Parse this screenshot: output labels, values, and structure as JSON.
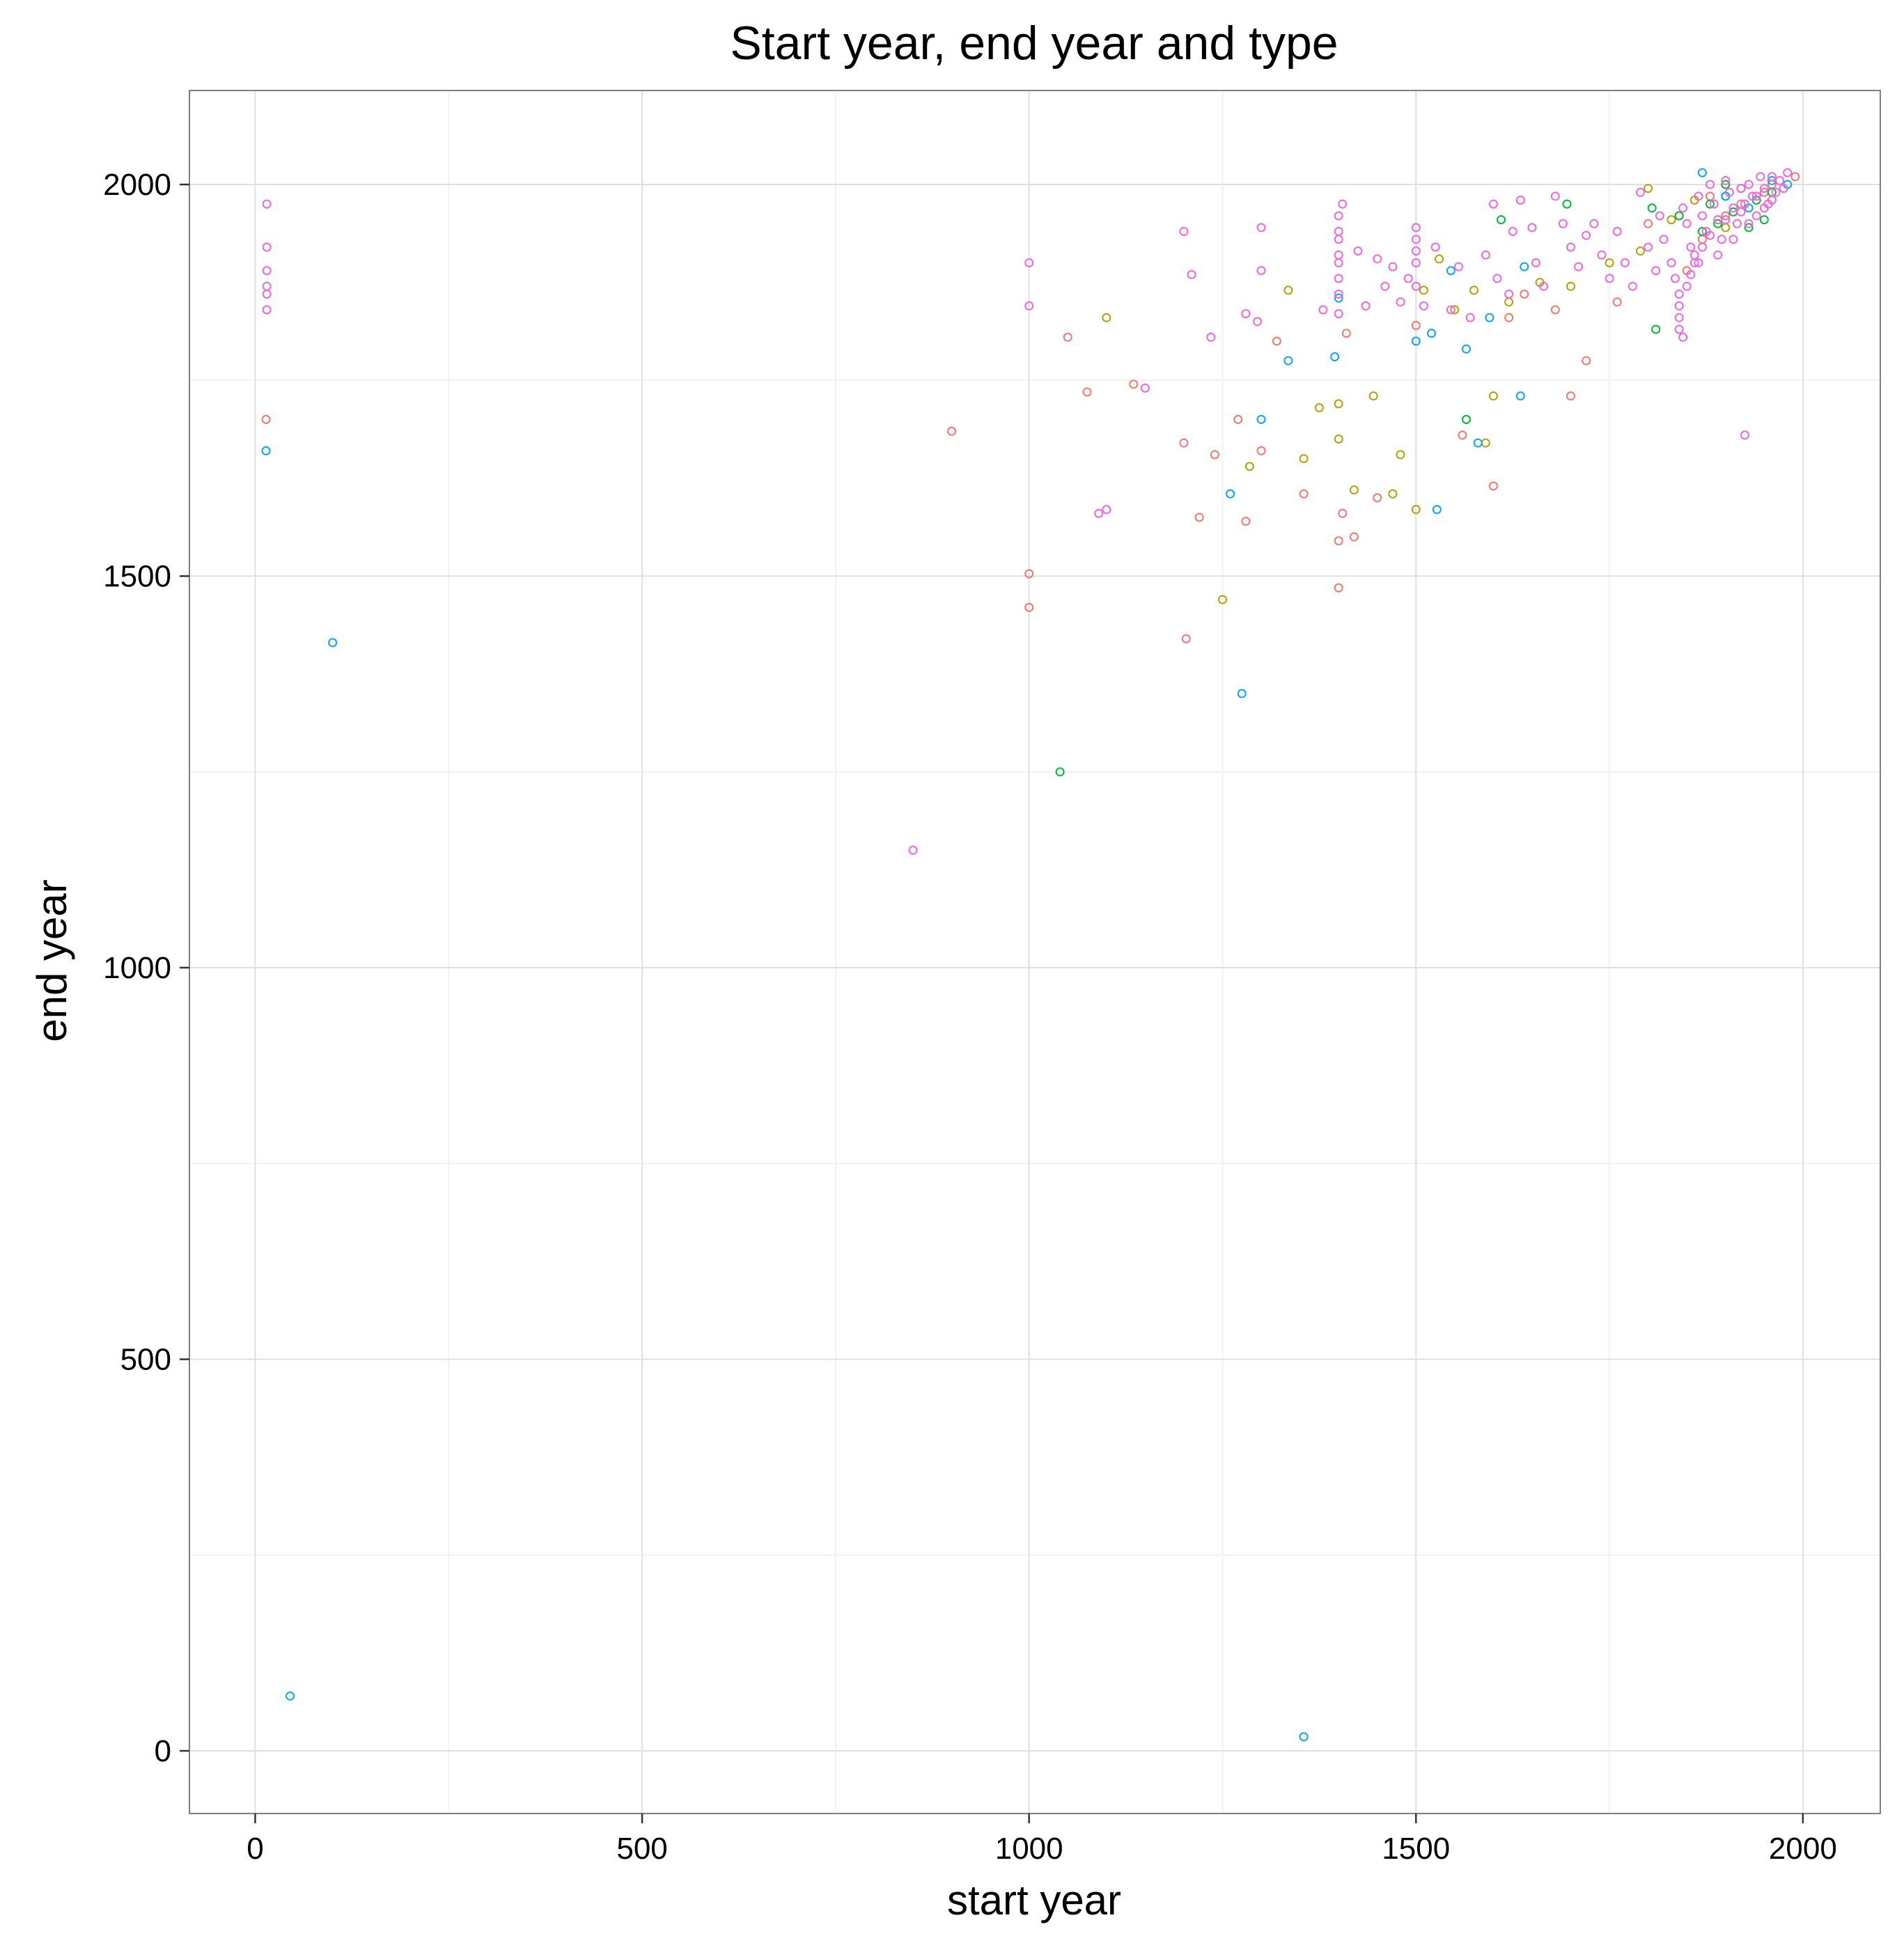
{
  "chart_data": {
    "type": "scatter",
    "title": "Start year, end year and type",
    "xlabel": "start year",
    "ylabel": "end year",
    "xlim": [
      -85,
      2100
    ],
    "ylim": [
      -80,
      2120
    ],
    "x_ticks": [
      0,
      500,
      1000,
      1500,
      2000
    ],
    "y_ticks": [
      0,
      500,
      1000,
      1500,
      2000
    ],
    "x_tick_labels": [
      "0",
      "500",
      "1000",
      "1500",
      "2000"
    ],
    "y_tick_labels": [
      "0",
      "500",
      "1000",
      "1500",
      "2000"
    ],
    "grid": true,
    "legend": "none",
    "marker": "hollow-circle",
    "series": [
      {
        "color": "#F8766D",
        "points": [
          [
            14,
            1700
          ],
          [
            900,
            1685
          ],
          [
            1000,
            1503
          ],
          [
            1000,
            1460
          ],
          [
            1050,
            1805
          ],
          [
            1075,
            1735
          ],
          [
            1135,
            1745
          ],
          [
            1200,
            1670
          ],
          [
            1203,
            1420
          ],
          [
            1220,
            1575
          ],
          [
            1240,
            1655
          ],
          [
            1270,
            1700
          ],
          [
            1280,
            1570
          ],
          [
            1300,
            1660
          ],
          [
            1320,
            1800
          ],
          [
            1355,
            1605
          ],
          [
            1400,
            1485
          ],
          [
            1400,
            1545
          ],
          [
            1405,
            1580
          ],
          [
            1410,
            1810
          ],
          [
            1420,
            1550
          ],
          [
            1450,
            1600
          ],
          [
            1500,
            1820
          ],
          [
            1560,
            1680
          ],
          [
            1600,
            1615
          ],
          [
            1620,
            1830
          ],
          [
            1700,
            1730
          ],
          [
            1720,
            1775
          ],
          [
            1640,
            1860
          ],
          [
            1680,
            1840
          ],
          [
            1760,
            1850
          ],
          [
            1800,
            1950
          ],
          [
            1850,
            1890
          ],
          [
            1900,
            1960
          ],
          [
            1950,
            1990
          ],
          [
            1990,
            2010
          ],
          [
            1880,
            1985
          ],
          [
            1920,
            1975
          ],
          [
            1960,
            2000
          ],
          [
            1870,
            1930
          ]
        ]
      },
      {
        "color": "#B79F00",
        "points": [
          [
            1100,
            1830
          ],
          [
            1250,
            1470
          ],
          [
            1285,
            1640
          ],
          [
            1335,
            1865
          ],
          [
            1355,
            1650
          ],
          [
            1375,
            1715
          ],
          [
            1400,
            1720
          ],
          [
            1400,
            1675
          ],
          [
            1420,
            1610
          ],
          [
            1445,
            1730
          ],
          [
            1470,
            1605
          ],
          [
            1480,
            1655
          ],
          [
            1500,
            1585
          ],
          [
            1510,
            1865
          ],
          [
            1530,
            1905
          ],
          [
            1550,
            1840
          ],
          [
            1575,
            1865
          ],
          [
            1590,
            1670
          ],
          [
            1600,
            1730
          ],
          [
            1620,
            1850
          ],
          [
            1660,
            1875
          ],
          [
            1700,
            1870
          ],
          [
            1750,
            1900
          ],
          [
            1790,
            1915
          ],
          [
            1800,
            1995
          ],
          [
            1830,
            1955
          ],
          [
            1860,
            1980
          ],
          [
            1900,
            1945
          ]
        ]
      },
      {
        "color": "#00BA38",
        "points": [
          [
            1040,
            1250
          ],
          [
            1565,
            1700
          ],
          [
            1610,
            1955
          ],
          [
            1695,
            1975
          ],
          [
            1805,
            1970
          ],
          [
            1810,
            1815
          ],
          [
            1840,
            1960
          ],
          [
            1880,
            1975
          ],
          [
            1890,
            1950
          ],
          [
            1900,
            1985
          ],
          [
            1910,
            1965
          ],
          [
            1920,
            1995
          ],
          [
            1930,
            1945
          ],
          [
            1940,
            1980
          ],
          [
            1950,
            1955
          ],
          [
            1960,
            1990
          ],
          [
            1870,
            1940
          ],
          [
            1900,
            2000
          ]
        ]
      },
      {
        "color": "#00A9FF",
        "points": [
          [
            45,
            70
          ],
          [
            14,
            1660
          ],
          [
            100,
            1415
          ],
          [
            1260,
            1605
          ],
          [
            1275,
            1350
          ],
          [
            1300,
            1700
          ],
          [
            1335,
            1775
          ],
          [
            1355,
            18
          ],
          [
            1395,
            1780
          ],
          [
            1400,
            1855
          ],
          [
            1500,
            1800
          ],
          [
            1520,
            1810
          ],
          [
            1527,
            1585
          ],
          [
            1545,
            1890
          ],
          [
            1565,
            1790
          ],
          [
            1580,
            1670
          ],
          [
            1595,
            1830
          ],
          [
            1635,
            1730
          ],
          [
            1640,
            1895
          ],
          [
            1870,
            2015
          ],
          [
            1900,
            1985
          ],
          [
            1930,
            1970
          ],
          [
            1960,
            2005
          ],
          [
            1980,
            2000
          ]
        ]
      },
      {
        "color": "#F564E3",
        "points": [
          [
            15,
            1975
          ],
          [
            15,
            1920
          ],
          [
            15,
            1890
          ],
          [
            15,
            1870
          ],
          [
            15,
            1860
          ],
          [
            15,
            1840
          ],
          [
            850,
            1150
          ],
          [
            1000,
            1900
          ],
          [
            1000,
            1845
          ],
          [
            1150,
            1740
          ],
          [
            1090,
            1580
          ],
          [
            1100,
            1585
          ],
          [
            1200,
            1940
          ],
          [
            1210,
            1885
          ],
          [
            1235,
            1805
          ],
          [
            1300,
            1945
          ],
          [
            1300,
            1890
          ],
          [
            1280,
            1835
          ],
          [
            1295,
            1825
          ],
          [
            1380,
            1840
          ],
          [
            1400,
            1960
          ],
          [
            1400,
            1940
          ],
          [
            1400,
            1930
          ],
          [
            1400,
            1910
          ],
          [
            1400,
            1900
          ],
          [
            1400,
            1880
          ],
          [
            1400,
            1860
          ],
          [
            1400,
            1835
          ],
          [
            1405,
            1975
          ],
          [
            1425,
            1915
          ],
          [
            1435,
            1845
          ],
          [
            1450,
            1905
          ],
          [
            1460,
            1870
          ],
          [
            1470,
            1895
          ],
          [
            1480,
            1850
          ],
          [
            1490,
            1880
          ],
          [
            1500,
            1945
          ],
          [
            1500,
            1930
          ],
          [
            1500,
            1915
          ],
          [
            1500,
            1900
          ],
          [
            1500,
            1870
          ],
          [
            1510,
            1845
          ],
          [
            1525,
            1920
          ],
          [
            1545,
            1840
          ],
          [
            1555,
            1895
          ],
          [
            1570,
            1830
          ],
          [
            1590,
            1910
          ],
          [
            1600,
            1975
          ],
          [
            1605,
            1880
          ],
          [
            1620,
            1860
          ],
          [
            1625,
            1940
          ],
          [
            1635,
            1980
          ],
          [
            1650,
            1945
          ],
          [
            1655,
            1900
          ],
          [
            1665,
            1870
          ],
          [
            1680,
            1985
          ],
          [
            1690,
            1950
          ],
          [
            1700,
            1920
          ],
          [
            1710,
            1895
          ],
          [
            1720,
            1935
          ],
          [
            1730,
            1950
          ],
          [
            1740,
            1910
          ],
          [
            1750,
            1880
          ],
          [
            1760,
            1940
          ],
          [
            1770,
            1900
          ],
          [
            1780,
            1870
          ],
          [
            1790,
            1990
          ],
          [
            1800,
            1920
          ],
          [
            1810,
            1890
          ],
          [
            1815,
            1960
          ],
          [
            1820,
            1930
          ],
          [
            1830,
            1900
          ],
          [
            1835,
            1880
          ],
          [
            1840,
            1860
          ],
          [
            1840,
            1845
          ],
          [
            1840,
            1830
          ],
          [
            1840,
            1815
          ],
          [
            1845,
            1970
          ],
          [
            1850,
            1950
          ],
          [
            1855,
            1920
          ],
          [
            1860,
            1900
          ],
          [
            1865,
            1985
          ],
          [
            1870,
            1960
          ],
          [
            1875,
            1940
          ],
          [
            1880,
            2000
          ],
          [
            1885,
            1975
          ],
          [
            1890,
            1955
          ],
          [
            1895,
            1930
          ],
          [
            1900,
            2005
          ],
          [
            1905,
            1990
          ],
          [
            1910,
            1970
          ],
          [
            1915,
            1950
          ],
          [
            1920,
            1995
          ],
          [
            1925,
            1975
          ],
          [
            1930,
            2000
          ],
          [
            1935,
            1985
          ],
          [
            1940,
            1960
          ],
          [
            1945,
            2010
          ],
          [
            1950,
            1995
          ],
          [
            1955,
            1975
          ],
          [
            1960,
            2010
          ],
          [
            1965,
            1990
          ],
          [
            1970,
            2005
          ],
          [
            1975,
            1995
          ],
          [
            1980,
            2015
          ],
          [
            1925,
            1680
          ],
          [
            1845,
            1805
          ],
          [
            1860,
            1910
          ],
          [
            1870,
            1920
          ],
          [
            1880,
            1935
          ],
          [
            1890,
            1910
          ],
          [
            1900,
            1955
          ],
          [
            1910,
            1930
          ],
          [
            1920,
            1965
          ],
          [
            1930,
            1950
          ],
          [
            1940,
            1985
          ],
          [
            1950,
            1970
          ],
          [
            1960,
            1980
          ],
          [
            1850,
            1870
          ],
          [
            1855,
            1885
          ],
          [
            1865,
            1900
          ]
        ]
      }
    ]
  }
}
